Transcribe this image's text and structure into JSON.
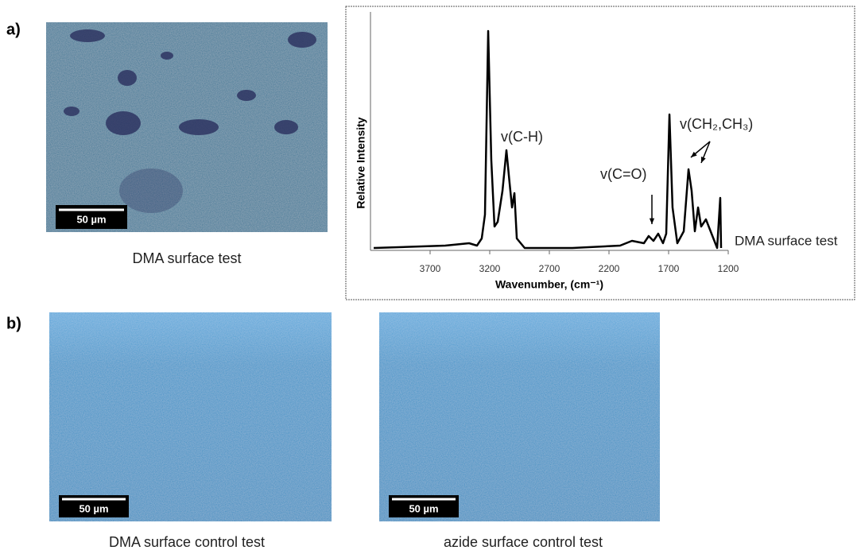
{
  "labels": [
    "a)",
    "b)"
  ],
  "images": [
    {
      "scale_bar": "50 µm",
      "caption": "DMA surface test"
    },
    {
      "scale_bar": "50 µm",
      "caption": "DMA surface control test"
    },
    {
      "scale_bar": "50 µm",
      "caption": "azide surface control test"
    }
  ],
  "chart_data": {
    "type": "line",
    "x_label": "Wavenumber, (cm⁻¹)",
    "y_label": "Relative Intensity",
    "x": [
      4173,
      3573,
      3373,
      3307,
      3267,
      3240,
      3213,
      3187,
      3160,
      3133,
      3093,
      3060,
      3033,
      3013,
      2993,
      2973,
      2907,
      2507,
      2107,
      2007,
      1907,
      1867,
      1827,
      1787,
      1747,
      1720,
      1693,
      1667,
      1627,
      1573,
      1533,
      1507,
      1480,
      1453,
      1427,
      1387,
      1340,
      1293,
      1267,
      1260
    ],
    "series": [
      {
        "name": "DMA surface test",
        "color": "#000000",
        "values": [
          0.01,
          0.02,
          0.03,
          0.02,
          0.05,
          0.15,
          0.92,
          0.38,
          0.1,
          0.12,
          0.25,
          0.42,
          0.28,
          0.18,
          0.24,
          0.05,
          0.01,
          0.01,
          0.02,
          0.04,
          0.03,
          0.06,
          0.04,
          0.07,
          0.03,
          0.07,
          0.57,
          0.18,
          0.03,
          0.08,
          0.34,
          0.25,
          0.08,
          0.18,
          0.1,
          0.13,
          0.07,
          0.01,
          0.22,
          0.01
        ]
      }
    ],
    "xlim": [
      4200,
      1200
    ],
    "xticks": [
      3700,
      3200,
      2700,
      2200,
      1700,
      1200
    ],
    "ylim": [
      0,
      1
    ],
    "annotations": [
      "v(C-H)",
      "v(C=O)",
      "v(CH₂,CH₃)"
    ]
  }
}
